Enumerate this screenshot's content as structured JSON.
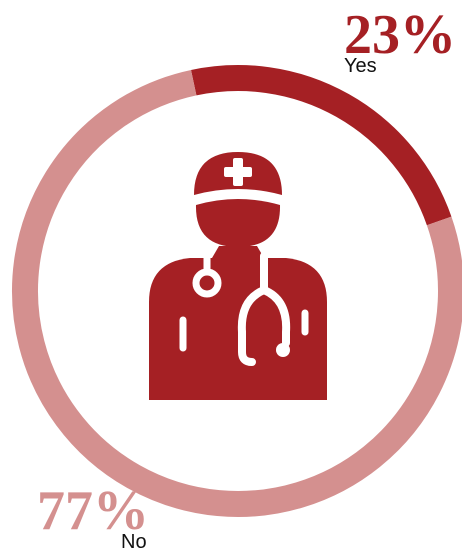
{
  "chart_data": {
    "type": "donut",
    "title": "",
    "slices": [
      {
        "name": "Yes",
        "value": 23,
        "value_label": "23%",
        "color": "#a52024"
      },
      {
        "name": "No",
        "value": 77,
        "value_label": "77%",
        "color": "#d4908f"
      }
    ]
  },
  "center_icon": {
    "name": "doctor-icon",
    "color": "#a52024"
  }
}
